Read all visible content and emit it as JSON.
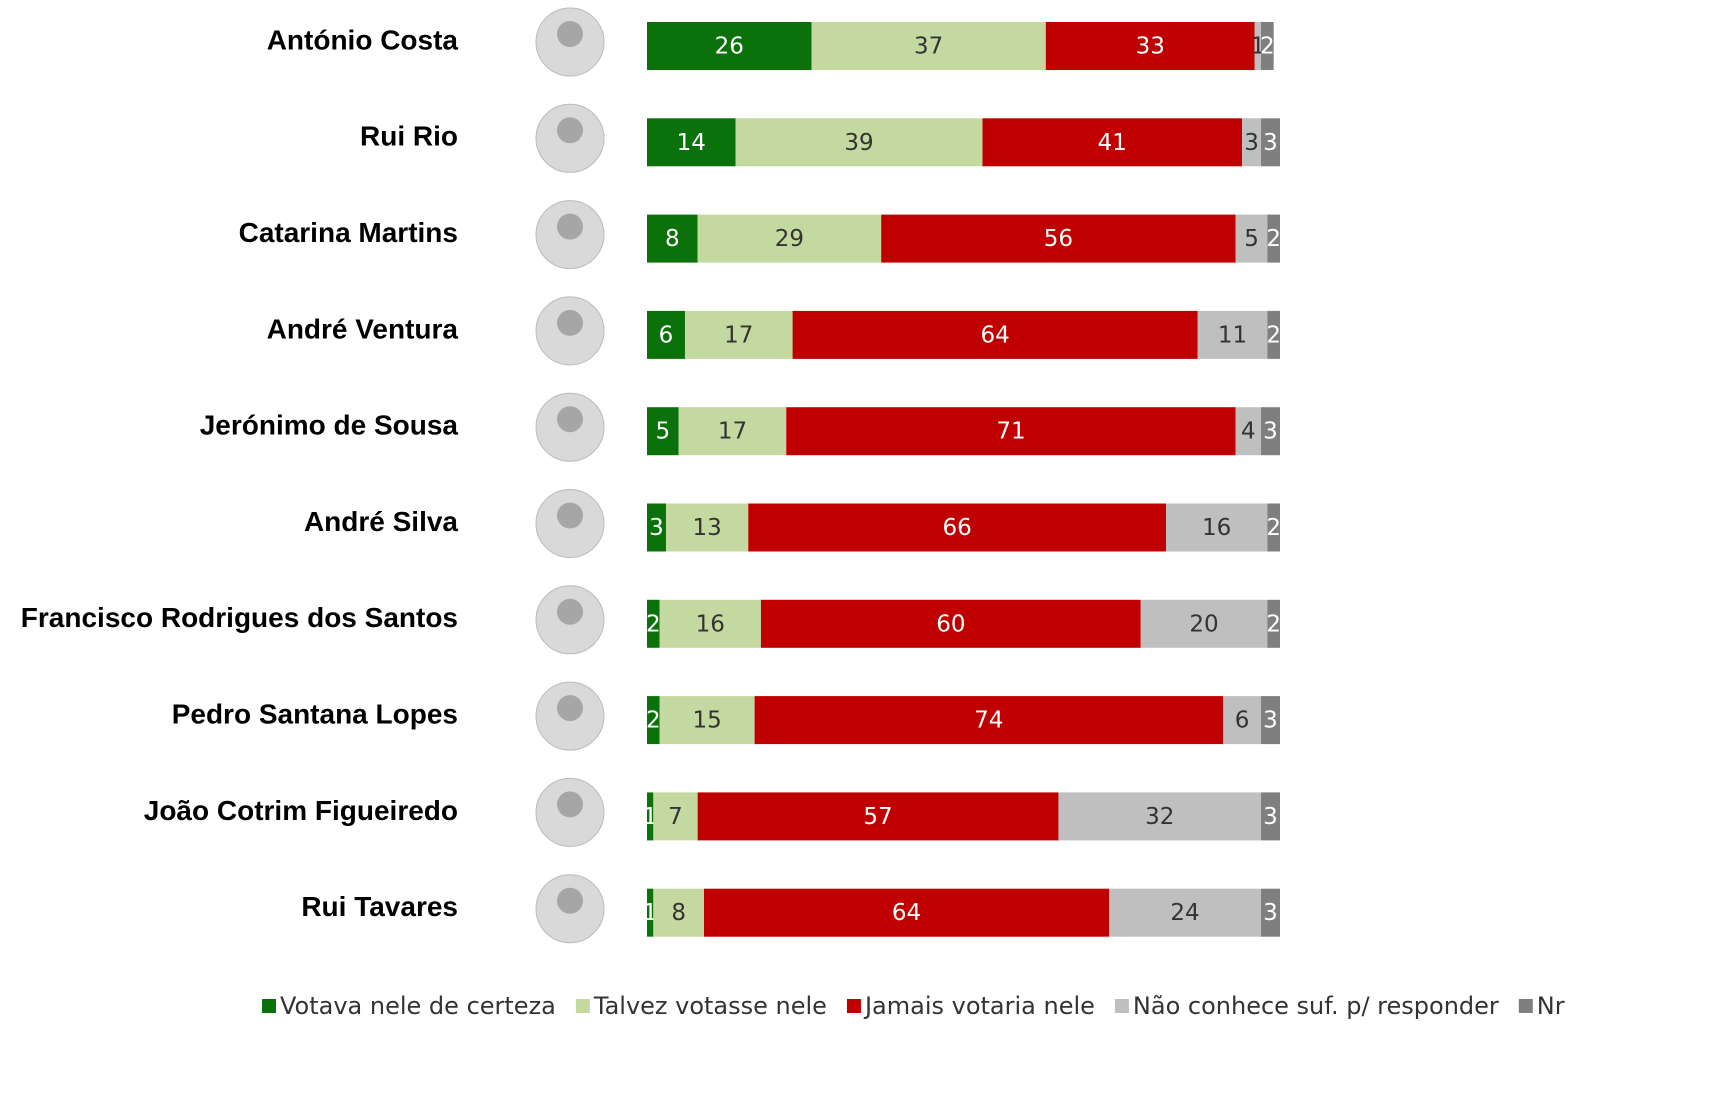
{
  "chart_data": {
    "type": "stacked-barh",
    "categories": [
      "António Costa",
      "Rui Rio",
      "Catarina Martins",
      "André Ventura",
      "Jerónimo de Sousa",
      "André Silva",
      "Francisco Rodrigues dos Santos",
      "Pedro Santana Lopes",
      "João Cotrim Figueiredo",
      "Rui Tavares"
    ],
    "series": [
      {
        "name": "Votava nele de certeza",
        "color": "#0b720b",
        "values": [
          26,
          14,
          8,
          6,
          5,
          3,
          2,
          2,
          1,
          1
        ]
      },
      {
        "name": "Talvez votasse nele",
        "color": "#c4d9a0",
        "values": [
          37,
          39,
          29,
          17,
          17,
          13,
          16,
          15,
          7,
          8
        ]
      },
      {
        "name": "Jamais votaria nele",
        "color": "#c00000",
        "values": [
          33,
          41,
          56,
          64,
          71,
          66,
          60,
          74,
          57,
          64
        ]
      },
      {
        "name": "Não conhece suf. p/ responder",
        "color": "#bfbfbf",
        "values": [
          1,
          3,
          5,
          11,
          4,
          16,
          20,
          6,
          32,
          24
        ]
      },
      {
        "name": "Nr",
        "color": "#7f7f7f",
        "values": [
          2,
          3,
          2,
          2,
          3,
          2,
          2,
          3,
          3,
          3
        ]
      }
    ],
    "legend": "bottom"
  }
}
